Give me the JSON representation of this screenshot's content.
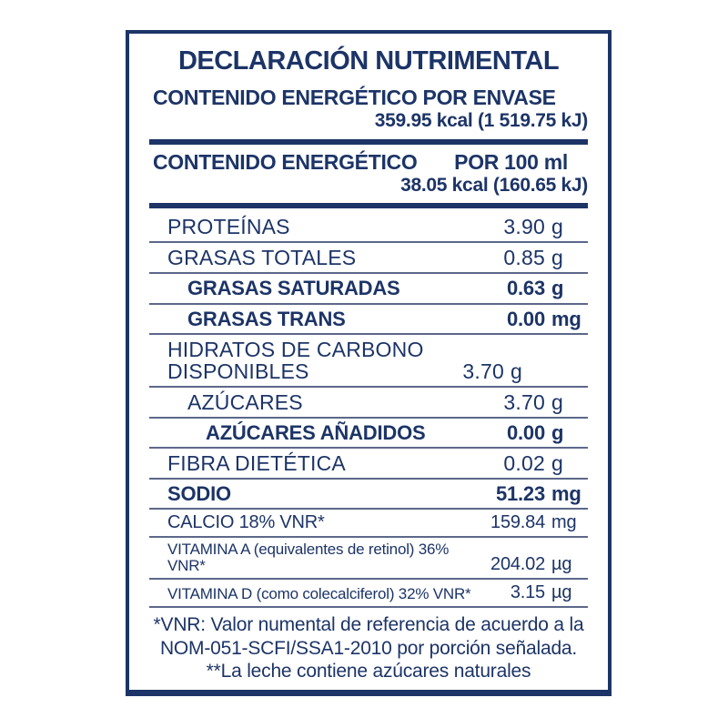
{
  "label": {
    "title": "DECLARACIÓN NUTRIMENTAL",
    "per_container": {
      "heading": "CONTENIDO ENERGÉTICO POR ENVASE",
      "value": "359.95 kcal (1 519.75 kJ)"
    },
    "per_100ml": {
      "heading": "CONTENIDO ENERGÉTICO",
      "portion": "POR 100 ml",
      "value": "38.05 kcal (160.65 kJ)"
    },
    "rows": [
      {
        "label": "PROTEÍNAS",
        "amount": "3.90",
        "unit": "g",
        "variant": "regular",
        "indent": 0,
        "two_line": false
      },
      {
        "label": "GRASAS TOTALES",
        "amount": "0.85",
        "unit": "g",
        "variant": "regular",
        "indent": 0,
        "two_line": false
      },
      {
        "label": "GRASAS SATURADAS",
        "amount": "0.63",
        "unit": "g",
        "variant": "bold",
        "indent": 1,
        "two_line": false
      },
      {
        "label": "GRASAS TRANS",
        "amount": "0.00",
        "unit": "mg",
        "variant": "bold",
        "indent": 1,
        "two_line": false
      },
      {
        "label": "HIDRATOS DE CARBONO DISPONIBLES",
        "amount": "3.70",
        "unit": "g",
        "variant": "regular",
        "indent": 0,
        "two_line": true
      },
      {
        "label": "AZÚCARES",
        "amount": "3.70",
        "unit": "g",
        "variant": "regular",
        "indent": 1,
        "two_line": false
      },
      {
        "label": "AZÚCARES AÑADIDOS",
        "amount": "0.00",
        "unit": "g",
        "variant": "bold",
        "indent": 2,
        "two_line": false
      },
      {
        "label": "FIBRA DIETÉTICA",
        "amount": "0.02",
        "unit": "g",
        "variant": "regular",
        "indent": 0,
        "two_line": false
      },
      {
        "label": "SODIO",
        "amount": "51.23",
        "unit": "mg",
        "variant": "bold",
        "indent": 0,
        "two_line": false
      },
      {
        "label": "CALCIO 18% VNR*",
        "amount": "159.84",
        "unit": "mg",
        "variant": "condensed-md",
        "indent": 0,
        "two_line": false
      },
      {
        "label": "VITAMINA A (equivalentes de retinol) 36% VNR*",
        "amount": "204.02",
        "unit": "µg",
        "variant": "condensed-sm",
        "indent": 0,
        "two_line": false
      },
      {
        "label": "VITAMINA D (como colecalciferol) 32% VNR*",
        "amount": "3.15",
        "unit": "µg",
        "variant": "condensed-sm",
        "indent": 0,
        "two_line": false
      }
    ],
    "footnotes": [
      "*VNR: Valor numental de referencia de acuerdo a la NOM-051-SCFI/SSA1-2010 por porción señalada.",
      "**La leche contiene azúcares naturales"
    ],
    "colors": {
      "navy": "#1c3467",
      "separator": "#5c688a"
    }
  }
}
